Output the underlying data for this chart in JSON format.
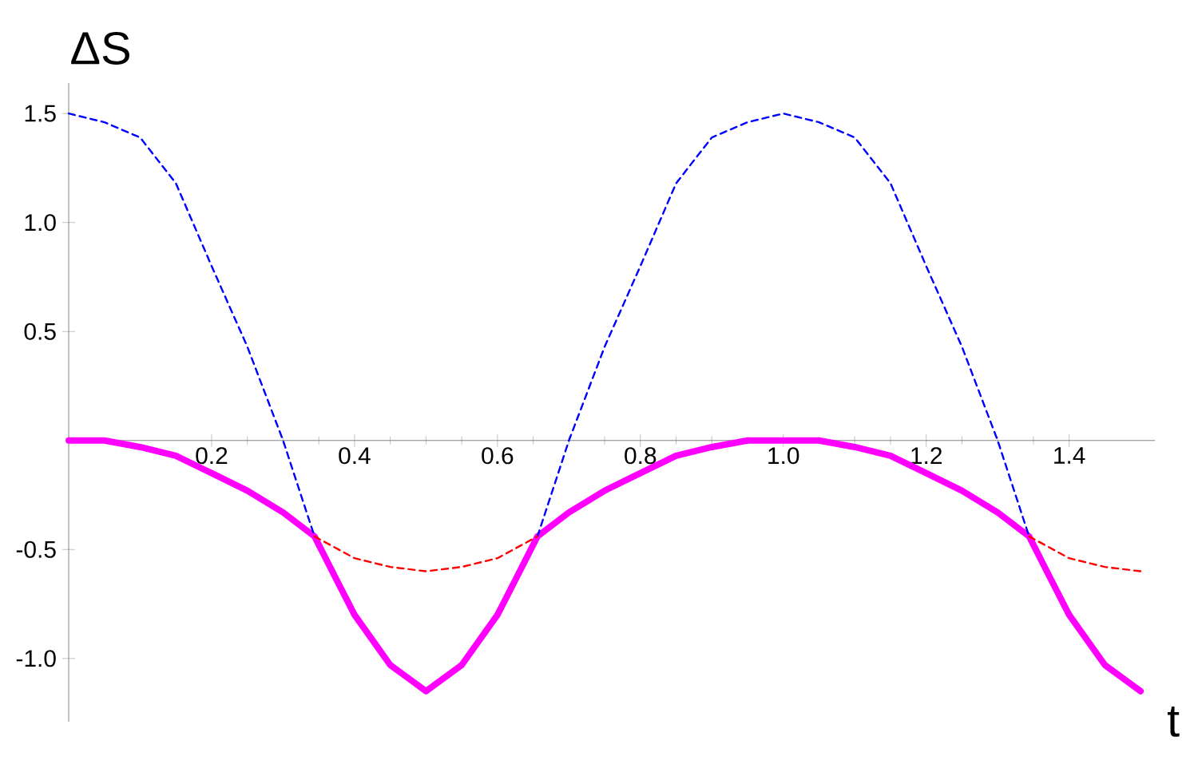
{
  "chart_data": {
    "type": "line",
    "xlabel": "t",
    "ylabel": "ΔS",
    "xlim": [
      0,
      1.52
    ],
    "ylim": [
      -1.29,
      1.64
    ],
    "xticks": [
      0.2,
      0.4,
      0.6,
      0.8,
      {
        "value": 1,
        "label": "1.0"
      },
      1.2,
      1.4
    ],
    "yticks": [
      {
        "value": -1,
        "label": "-1.0"
      },
      -0.5,
      0.5,
      {
        "value": 1,
        "label": "1.0"
      },
      1.5
    ],
    "grid": false,
    "marker": "none",
    "series": [
      {
        "color": "#0000ff",
        "line_style": "dashed",
        "x": [
          0,
          0.05,
          0.1,
          0.15,
          0.2,
          0.25,
          0.3,
          0.344,
          0.5,
          0.656,
          0.7,
          0.75,
          0.8,
          0.85,
          0.9,
          0.95,
          1.0,
          1.05,
          1.1,
          1.15,
          1.2,
          1.25,
          1.3,
          1.344
        ],
        "values": [
          1.5,
          1.46,
          1.39,
          1.18,
          0.8,
          0.43,
          0,
          -0.44,
          null,
          -0.44,
          0,
          0.43,
          0.8,
          1.18,
          1.39,
          1.46,
          1.5,
          1.46,
          1.39,
          1.18,
          0.8,
          0.43,
          0,
          -0.44
        ]
      },
      {
        "color": "#ff0000",
        "line_style": "dashed",
        "x": [
          0.344,
          0.4,
          0.45,
          0.5,
          0.55,
          0.6,
          0.656,
          1.0,
          1.344,
          1.4,
          1.45,
          1.5
        ],
        "values": [
          -0.44,
          -0.54,
          -0.58,
          -0.6,
          -0.58,
          -0.54,
          -0.44,
          null,
          -0.44,
          -0.54,
          -0.58,
          -0.6
        ]
      },
      {
        "color": "#ff00ff",
        "line_style": "solid",
        "x": [
          0,
          0.05,
          0.1,
          0.15,
          0.2,
          0.25,
          0.3,
          0.344,
          0.375,
          0.4,
          0.45,
          0.5,
          0.55,
          0.6,
          0.625,
          0.656,
          0.7,
          0.75,
          0.8,
          0.85,
          0.9,
          0.95,
          1.0,
          1.05,
          1.1,
          1.15,
          1.2,
          1.25,
          1.3,
          1.344,
          1.375,
          1.4,
          1.45,
          1.5
        ],
        "values": [
          0,
          0,
          -0.03,
          -0.07,
          -0.15,
          -0.23,
          -0.33,
          -0.44,
          -0.64,
          -0.8,
          -1.03,
          -1.15,
          -1.03,
          -0.8,
          -0.64,
          -0.44,
          -0.33,
          -0.23,
          -0.15,
          -0.07,
          -0.03,
          0,
          0,
          0,
          -0.03,
          -0.07,
          -0.15,
          -0.23,
          -0.33,
          -0.44,
          -0.64,
          -0.8,
          -1.03,
          -1.15
        ]
      }
    ]
  }
}
